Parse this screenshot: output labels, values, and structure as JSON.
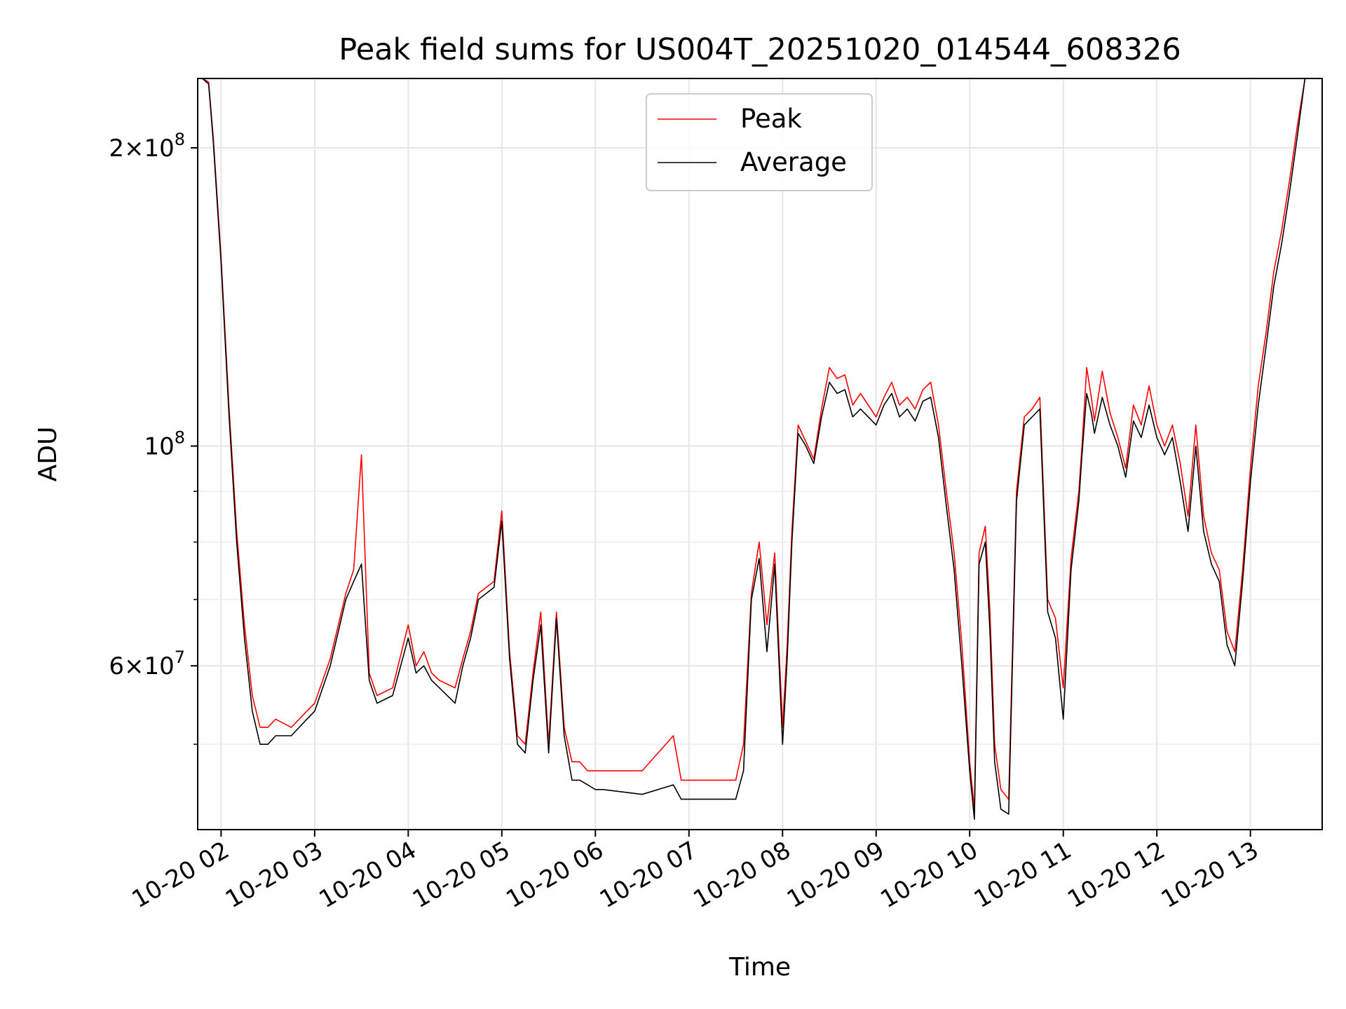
{
  "chart_data": {
    "type": "line",
    "title": "Peak field sums for US004T_20251020_014544_608326",
    "xlabel": "Time",
    "ylabel": "ADU",
    "yscale": "log",
    "ylim": [
      41000000,
      235000000
    ],
    "xlim": [
      "10-20 01:45",
      "10-20 13:46"
    ],
    "grid": true,
    "legend_position": "top-center",
    "x_ticks": [
      "10-20 02",
      "10-20 03",
      "10-20 04",
      "10-20 05",
      "10-20 06",
      "10-20 07",
      "10-20 08",
      "10-20 09",
      "10-20 10",
      "10-20 11",
      "10-20 12",
      "10-20 13"
    ],
    "y_major_ticks": [
      {
        "value": 200000000,
        "mantissa": "2",
        "exponent": "8"
      },
      {
        "value": 100000000,
        "mantissa": "",
        "exponent": "8"
      },
      {
        "value": 60000000,
        "mantissa": "6",
        "exponent": "7"
      }
    ],
    "y_minor_ticks": [
      50000000,
      70000000,
      80000000,
      90000000
    ],
    "x": [
      "10-20 01:45",
      "10-20 01:48",
      "10-20 01:52",
      "10-20 01:55",
      "10-20 02:00",
      "10-20 02:05",
      "10-20 02:10",
      "10-20 02:15",
      "10-20 02:20",
      "10-20 02:25",
      "10-20 02:30",
      "10-20 02:35",
      "10-20 02:45",
      "10-20 02:55",
      "10-20 03:00",
      "10-20 03:10",
      "10-20 03:20",
      "10-20 03:25",
      "10-20 03:30",
      "10-20 03:35",
      "10-20 03:40",
      "10-20 03:50",
      "10-20 04:00",
      "10-20 04:05",
      "10-20 04:10",
      "10-20 04:15",
      "10-20 04:20",
      "10-20 04:30",
      "10-20 04:35",
      "10-20 04:40",
      "10-20 04:45",
      "10-20 04:55",
      "10-20 05:00",
      "10-20 05:05",
      "10-20 05:10",
      "10-20 05:15",
      "10-20 05:20",
      "10-20 05:25",
      "10-20 05:30",
      "10-20 05:35",
      "10-20 05:40",
      "10-20 05:45",
      "10-20 05:50",
      "10-20 05:55",
      "10-20 06:00",
      "10-20 06:05",
      "10-20 06:30",
      "10-20 06:50",
      "10-20 06:55",
      "10-20 07:00",
      "10-20 07:30",
      "10-20 07:35",
      "10-20 07:40",
      "10-20 07:45",
      "10-20 07:50",
      "10-20 07:55",
      "10-20 08:00",
      "10-20 08:03",
      "10-20 08:06",
      "10-20 08:10",
      "10-20 08:15",
      "10-20 08:20",
      "10-20 08:25",
      "10-20 08:30",
      "10-20 08:35",
      "10-20 08:40",
      "10-20 08:45",
      "10-20 08:50",
      "10-20 09:00",
      "10-20 09:05",
      "10-20 09:10",
      "10-20 09:15",
      "10-20 09:20",
      "10-20 09:25",
      "10-20 09:30",
      "10-20 09:35",
      "10-20 09:40",
      "10-20 09:45",
      "10-20 09:50",
      "10-20 09:55",
      "10-20 10:00",
      "10-20 10:03",
      "10-20 10:06",
      "10-20 10:10",
      "10-20 10:13",
      "10-20 10:16",
      "10-20 10:20",
      "10-20 10:25",
      "10-20 10:30",
      "10-20 10:35",
      "10-20 10:40",
      "10-20 10:45",
      "10-20 10:50",
      "10-20 10:55",
      "10-20 11:00",
      "10-20 11:05",
      "10-20 11:10",
      "10-20 11:12",
      "10-20 11:15",
      "10-20 11:18",
      "10-20 11:20",
      "10-20 11:25",
      "10-20 11:30",
      "10-20 11:35",
      "10-20 11:40",
      "10-20 11:45",
      "10-20 11:50",
      "10-20 11:55",
      "10-20 12:00",
      "10-20 12:05",
      "10-20 12:10",
      "10-20 12:15",
      "10-20 12:20",
      "10-20 12:25",
      "10-20 12:30",
      "10-20 12:35",
      "10-20 12:40",
      "10-20 12:45",
      "10-20 12:50",
      "10-20 12:55",
      "10-20 13:00",
      "10-20 13:05",
      "10-20 13:10",
      "10-20 13:15",
      "10-20 13:20",
      "10-20 13:25",
      "10-20 13:30",
      "10-20 13:35",
      "10-20 13:40",
      "10-20 13:46"
    ],
    "series": [
      {
        "name": "Peak",
        "color": "#ff0000",
        "values": [
          235000000,
          235000000,
          233000000,
          205000000,
          155000000,
          110000000,
          82000000,
          66000000,
          56000000,
          52000000,
          52000000,
          53000000,
          52000000,
          54000000,
          55000000,
          61000000,
          71000000,
          75000000,
          98000000,
          59000000,
          56000000,
          57000000,
          66000000,
          60000000,
          62000000,
          59000000,
          58000000,
          57000000,
          61000000,
          65000000,
          71000000,
          73000000,
          86000000,
          62000000,
          51000000,
          50000000,
          59000000,
          68000000,
          50000000,
          68000000,
          52000000,
          48000000,
          48000000,
          47000000,
          47000000,
          47000000,
          47000000,
          51000000,
          46000000,
          46000000,
          46000000,
          50000000,
          71000000,
          80000000,
          66000000,
          78000000,
          52000000,
          63000000,
          82000000,
          105000000,
          101000000,
          97000000,
          109000000,
          120000000,
          117000000,
          118000000,
          110000000,
          113000000,
          107000000,
          112000000,
          116000000,
          110000000,
          112000000,
          109000000,
          114000000,
          116000000,
          105000000,
          90000000,
          78000000,
          63000000,
          48000000,
          43000000,
          78000000,
          83000000,
          68000000,
          50000000,
          45000000,
          44000000,
          90000000,
          107000000,
          109000000,
          112000000,
          70000000,
          67000000,
          57000000,
          77000000,
          90000000,
          100000000,
          120000000,
          112000000,
          106000000,
          119000000,
          108000000,
          102000000,
          95000000,
          110000000,
          105000000,
          115000000,
          105000000,
          100000000,
          105000000,
          96000000,
          85000000,
          105000000,
          85000000,
          78000000,
          75000000,
          65000000,
          62000000,
          75000000,
          95000000,
          115000000,
          130000000,
          150000000,
          165000000,
          185000000,
          210000000,
          235000000,
          235000000,
          235000000
        ]
      },
      {
        "name": "Average",
        "color": "#000000",
        "values": [
          235000000,
          235000000,
          232000000,
          203000000,
          153000000,
          108000000,
          80000000,
          64000000,
          54000000,
          50000000,
          50000000,
          51000000,
          51000000,
          53000000,
          54000000,
          60000000,
          70000000,
          73000000,
          76000000,
          58000000,
          55000000,
          56000000,
          64000000,
          59000000,
          60000000,
          58000000,
          57000000,
          55000000,
          60000000,
          64000000,
          70000000,
          72000000,
          84000000,
          61000000,
          50000000,
          49000000,
          58000000,
          66000000,
          49000000,
          67000000,
          51000000,
          46000000,
          46000000,
          45500000,
          45000000,
          45000000,
          44500000,
          45500000,
          44000000,
          44000000,
          44000000,
          47000000,
          70000000,
          77000000,
          62000000,
          76000000,
          50000000,
          61000000,
          80000000,
          103000000,
          100000000,
          96000000,
          107000000,
          116000000,
          113000000,
          114000000,
          107000000,
          109000000,
          105000000,
          110000000,
          113000000,
          107000000,
          109000000,
          106000000,
          111000000,
          112000000,
          102000000,
          87000000,
          75000000,
          60000000,
          47000000,
          42000000,
          76000000,
          80000000,
          65000000,
          48000000,
          43000000,
          42500000,
          88000000,
          105000000,
          107000000,
          109000000,
          68000000,
          64000000,
          53000000,
          75000000,
          88000000,
          98000000,
          113000000,
          108000000,
          103000000,
          112000000,
          105000000,
          100000000,
          93000000,
          106000000,
          102000000,
          110000000,
          102000000,
          98000000,
          102000000,
          92000000,
          82000000,
          100000000,
          82000000,
          76000000,
          73000000,
          63000000,
          60000000,
          73000000,
          92000000,
          110000000,
          126000000,
          145000000,
          160000000,
          180000000,
          205000000,
          235000000,
          235000000,
          235000000
        ]
      }
    ]
  }
}
